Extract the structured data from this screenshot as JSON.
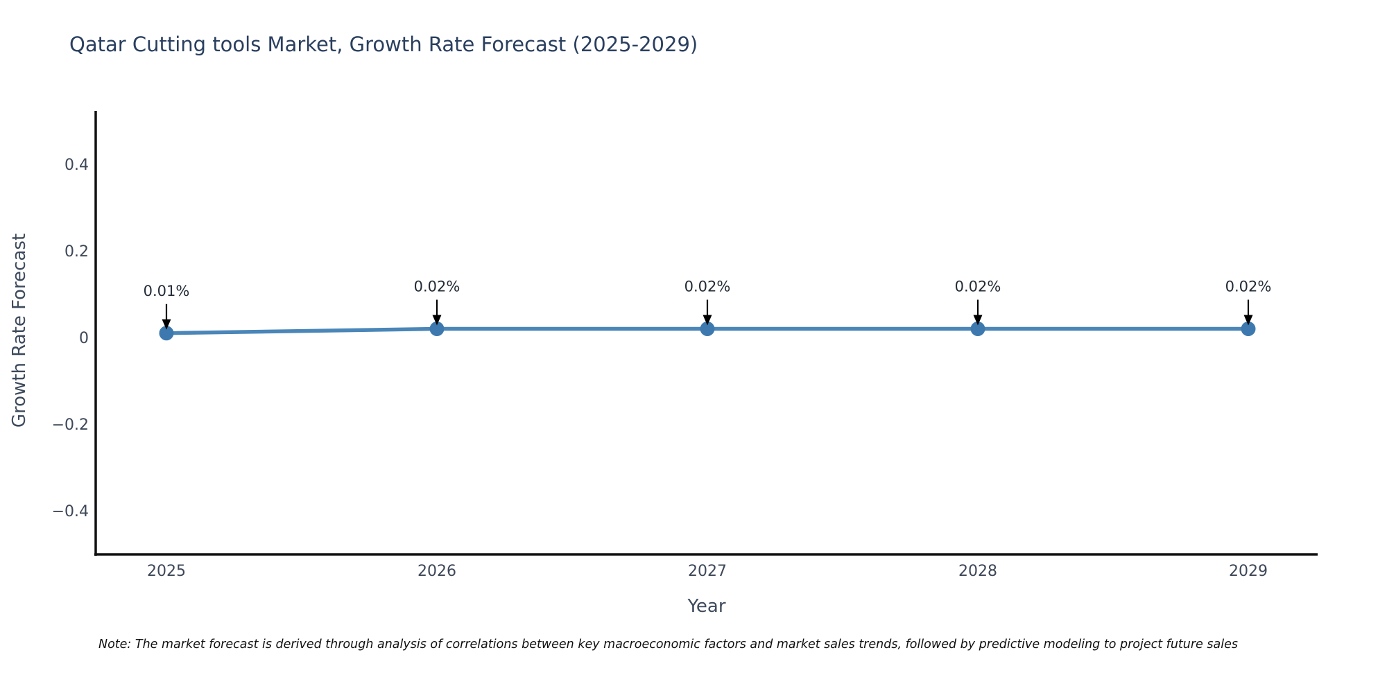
{
  "title": "Qatar Cutting tools Market, Growth Rate Forecast (2025-2029)",
  "footnote": "Note: The market forecast is derived through analysis of correlations between key macroeconomic factors and market sales trends, followed by predictive modeling to project future sales",
  "chart_data": {
    "type": "line",
    "title": "Qatar Cutting tools Market, Growth Rate Forecast (2025-2029)",
    "xlabel": "Year",
    "ylabel": "Growth Rate Forecast",
    "x": [
      2025,
      2026,
      2027,
      2028,
      2029
    ],
    "x_tick_labels": [
      "2025",
      "2026",
      "2027",
      "2028",
      "2029"
    ],
    "y": [
      0.01,
      0.02,
      0.02,
      0.02,
      0.02
    ],
    "point_labels": [
      "0.01%",
      "0.02%",
      "0.02%",
      "0.02%",
      "0.02%"
    ],
    "y_ticks": [
      0.4,
      0.2,
      0,
      -0.2,
      -0.4
    ],
    "y_tick_labels": [
      "0.4",
      "0.2",
      "0",
      "−0.2",
      "−0.4"
    ],
    "ylim": [
      -0.5,
      0.52
    ],
    "grid": false,
    "legend": "none",
    "annotation_style": "black-down-arrows",
    "colors": {
      "line": "#4a86b8",
      "marker": "#3d79ae",
      "axis_line": "#111111",
      "arrow": "#000000",
      "annotation_text": "#222b36",
      "tick_text": "#3d4757",
      "title_text": "#2a3f5f"
    }
  }
}
